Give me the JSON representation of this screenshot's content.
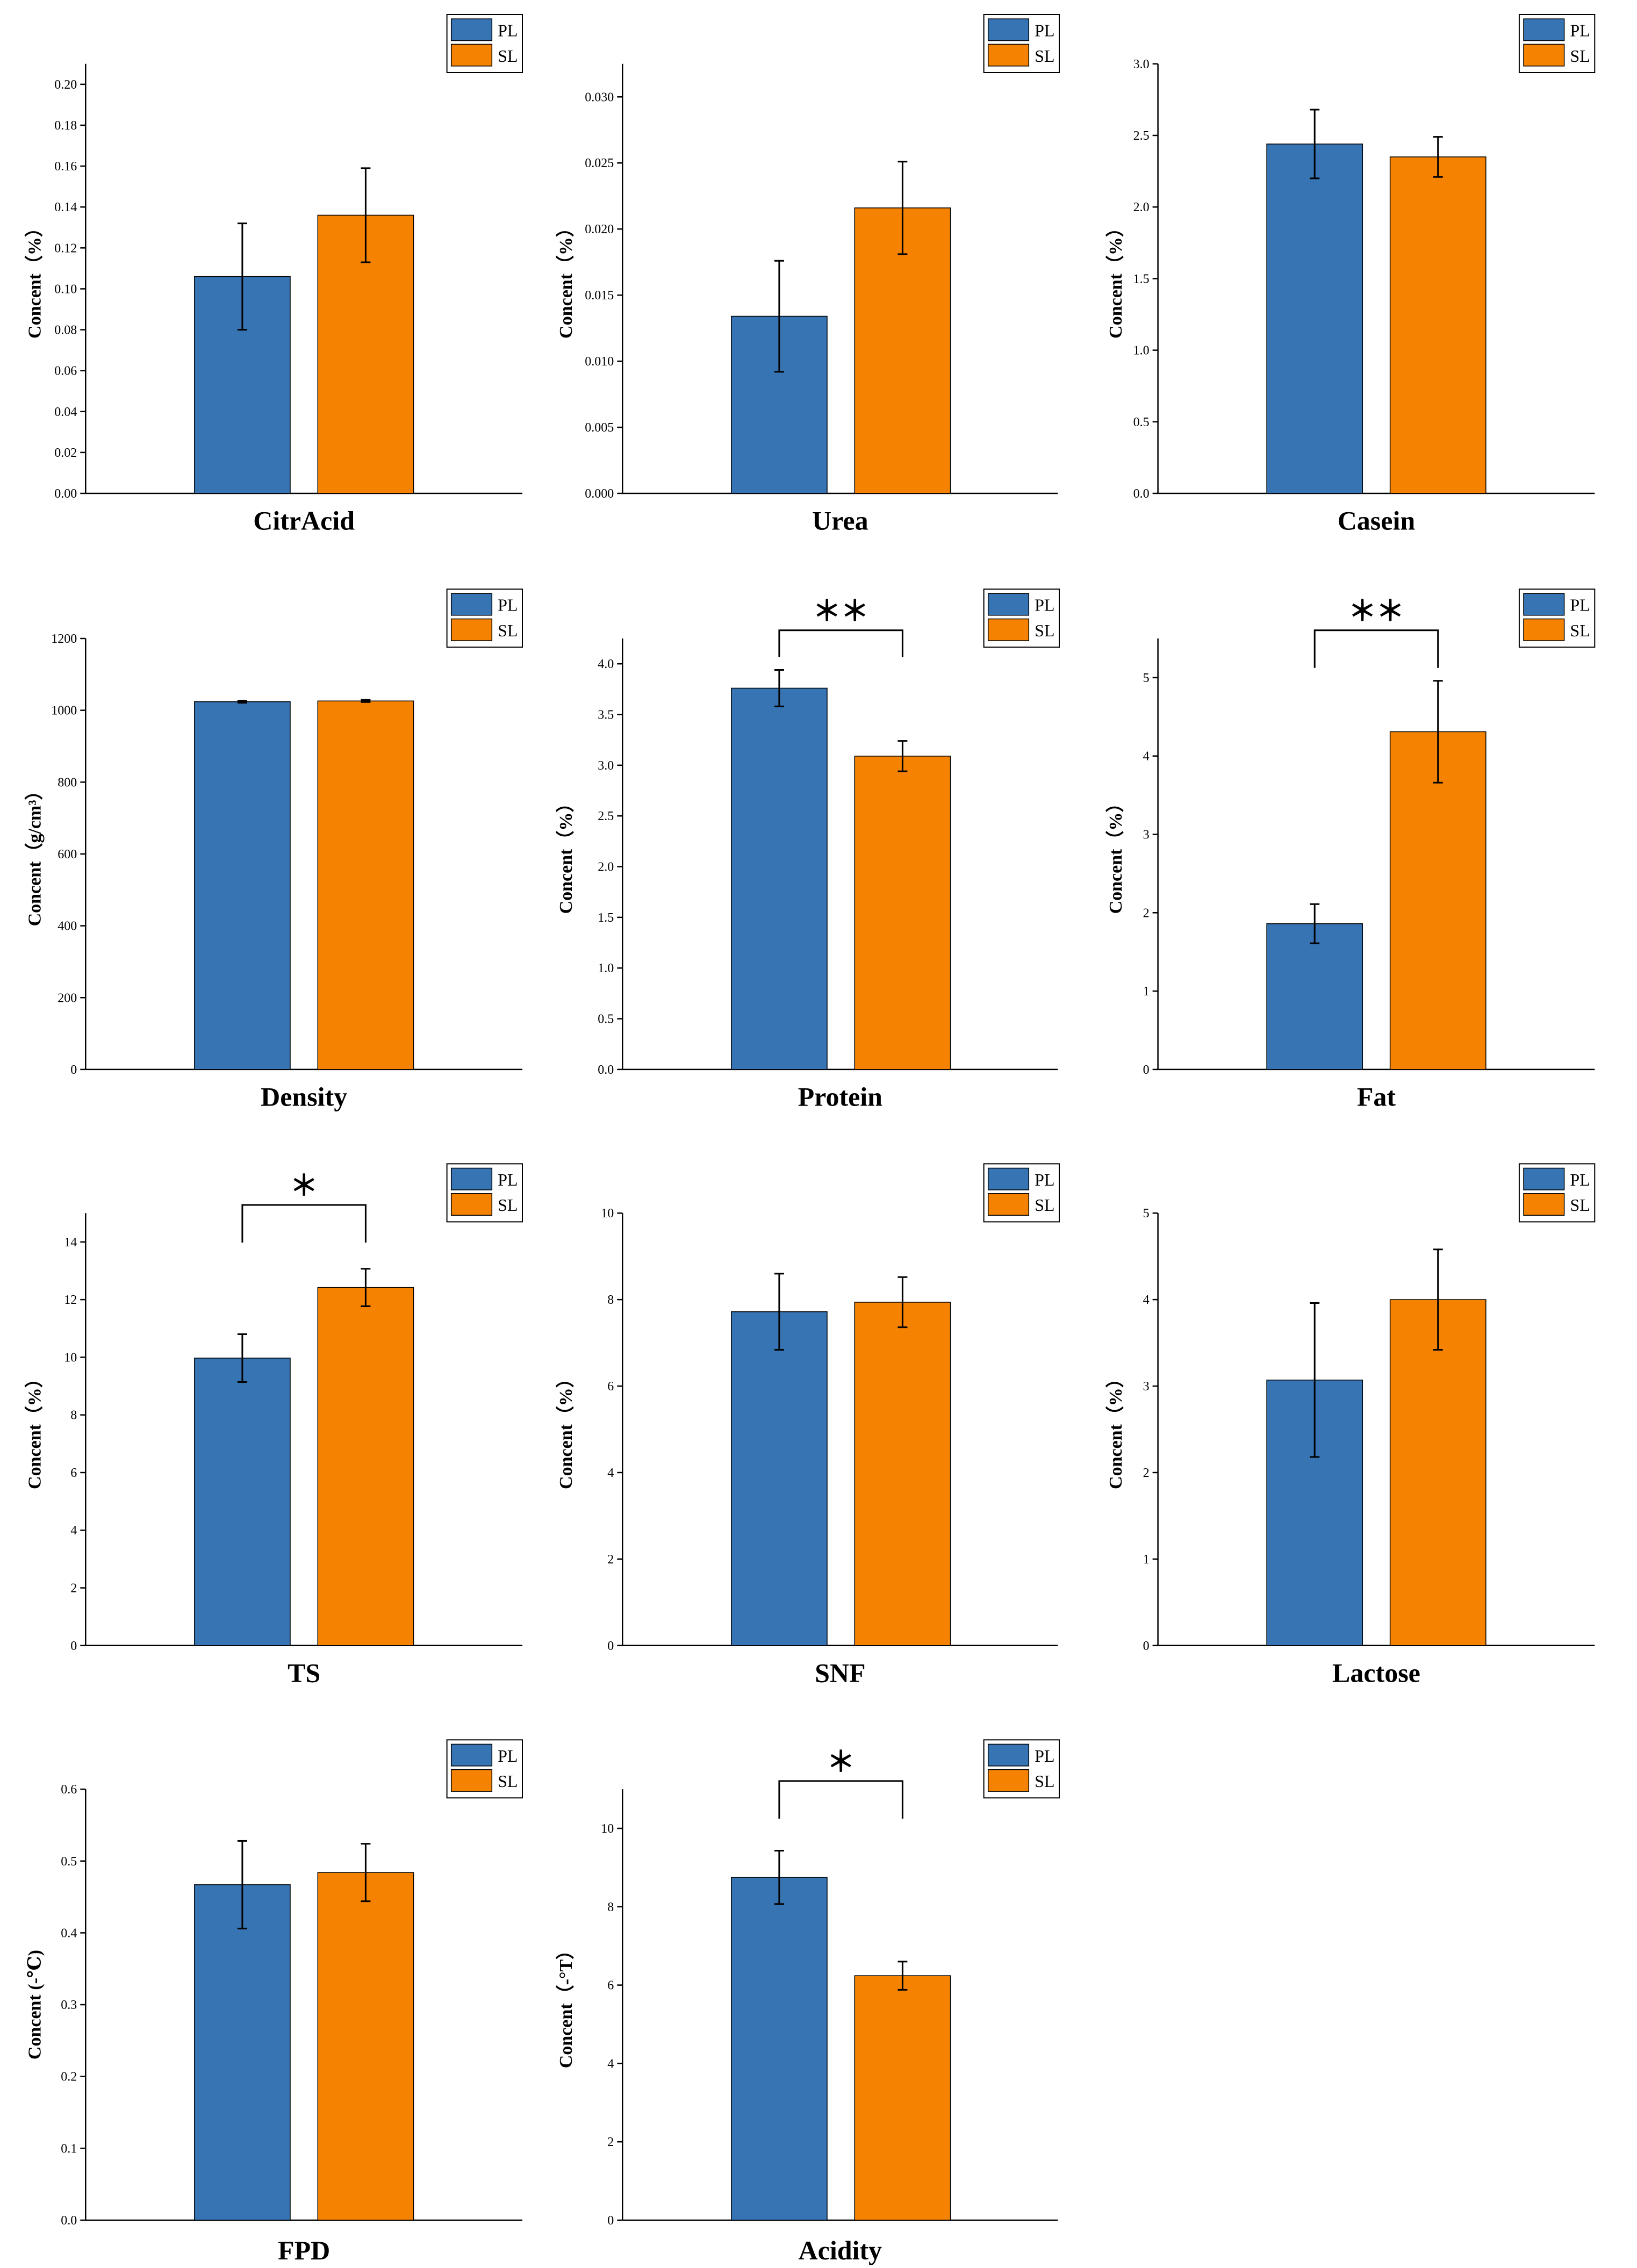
{
  "colors": {
    "PL": "#3674b4",
    "SL": "#f58201"
  },
  "legend": [
    "PL",
    "SL"
  ],
  "chart_data": [
    {
      "type": "bar",
      "category": "CitrAcid",
      "ylabel": "Concent（%）",
      "ylim": [
        0,
        0.21
      ],
      "yticks": [
        "0.00",
        "0.02",
        "0.04",
        "0.06",
        "0.08",
        "0.10",
        "0.12",
        "0.14",
        "0.16",
        "0.18",
        "0.20"
      ],
      "series": [
        {
          "name": "PL",
          "value": 0.106,
          "error": 0.026
        },
        {
          "name": "SL",
          "value": 0.136,
          "error": 0.023
        }
      ],
      "significance": ""
    },
    {
      "type": "bar",
      "category": "Urea",
      "ylabel": "Concent（%）",
      "ylim": [
        0,
        0.0325
      ],
      "yticks": [
        "0.000",
        "0.005",
        "0.010",
        "0.015",
        "0.020",
        "0.025",
        "0.030"
      ],
      "series": [
        {
          "name": "PL",
          "value": 0.0134,
          "error": 0.0042
        },
        {
          "name": "SL",
          "value": 0.0216,
          "error": 0.0035
        }
      ],
      "significance": ""
    },
    {
      "type": "bar",
      "category": "Casein",
      "ylabel": "Concent（%）",
      "ylim": [
        0,
        3.0
      ],
      "yticks": [
        "0.0",
        "0.5",
        "1.0",
        "1.5",
        "2.0",
        "2.5",
        "3.0"
      ],
      "series": [
        {
          "name": "PL",
          "value": 2.44,
          "error": 0.24
        },
        {
          "name": "SL",
          "value": 2.35,
          "error": 0.14
        }
      ],
      "significance": ""
    },
    {
      "type": "bar",
      "category": "Density",
      "ylabel": "Concent（g/cm³）",
      "ylim": [
        0,
        1200
      ],
      "yticks": [
        "0",
        "200",
        "400",
        "600",
        "800",
        "1000",
        "1200"
      ],
      "series": [
        {
          "name": "PL",
          "value": 1024,
          "error": 3
        },
        {
          "name": "SL",
          "value": 1026,
          "error": 3
        }
      ],
      "significance": ""
    },
    {
      "type": "bar",
      "category": "Protein",
      "ylabel": "Concent（%）",
      "ylim": [
        0,
        4.25
      ],
      "yticks": [
        "0.0",
        "0.5",
        "1.0",
        "1.5",
        "2.0",
        "2.5",
        "3.0",
        "3.5",
        "4.0"
      ],
      "series": [
        {
          "name": "PL",
          "value": 3.76,
          "error": 0.18
        },
        {
          "name": "SL",
          "value": 3.09,
          "error": 0.15
        }
      ],
      "significance": "＊＊"
    },
    {
      "type": "bar",
      "category": "Fat",
      "ylabel": "Concent（%）",
      "ylim": [
        0,
        5.5
      ],
      "yticks": [
        "0",
        "1",
        "2",
        "3",
        "4",
        "5"
      ],
      "series": [
        {
          "name": "PL",
          "value": 1.86,
          "error": 0.25
        },
        {
          "name": "SL",
          "value": 4.31,
          "error": 0.65
        }
      ],
      "significance": "＊＊"
    },
    {
      "type": "bar",
      "category": "TS",
      "ylabel": "Concent（%）",
      "ylim": [
        0,
        15
      ],
      "yticks": [
        "0",
        "2",
        "4",
        "6",
        "8",
        "10",
        "12",
        "14"
      ],
      "series": [
        {
          "name": "PL",
          "value": 9.97,
          "error": 0.83
        },
        {
          "name": "SL",
          "value": 12.42,
          "error": 0.65
        }
      ],
      "significance": "＊"
    },
    {
      "type": "bar",
      "category": "SNF",
      "ylabel": "Concent（%）",
      "ylim": [
        0,
        10
      ],
      "yticks": [
        "0",
        "2",
        "4",
        "6",
        "8",
        "10"
      ],
      "series": [
        {
          "name": "PL",
          "value": 7.72,
          "error": 0.88
        },
        {
          "name": "SL",
          "value": 7.94,
          "error": 0.58
        }
      ],
      "significance": ""
    },
    {
      "type": "bar",
      "category": "Lactose",
      "ylabel": "Concent（%）",
      "ylim": [
        0,
        5
      ],
      "yticks": [
        "0",
        "1",
        "2",
        "3",
        "4",
        "5"
      ],
      "series": [
        {
          "name": "PL",
          "value": 3.07,
          "error": 0.89
        },
        {
          "name": "SL",
          "value": 4.0,
          "error": 0.58
        }
      ],
      "significance": ""
    },
    {
      "type": "bar",
      "category": "FPD",
      "ylabel": "Concent (-℃)",
      "ylim": [
        0,
        0.6
      ],
      "yticks": [
        "0.0",
        "0.1",
        "0.2",
        "0.3",
        "0.4",
        "0.5",
        "0.6"
      ],
      "series": [
        {
          "name": "PL",
          "value": 0.467,
          "error": 0.061
        },
        {
          "name": "SL",
          "value": 0.484,
          "error": 0.04
        }
      ],
      "significance": ""
    },
    {
      "type": "bar",
      "category": "Acidity",
      "ylabel": "Concent（-°T）",
      "ylim": [
        0,
        11
      ],
      "yticks": [
        "0",
        "2",
        "4",
        "6",
        "8",
        "10"
      ],
      "series": [
        {
          "name": "PL",
          "value": 8.75,
          "error": 0.68
        },
        {
          "name": "SL",
          "value": 6.24,
          "error": 0.36
        }
      ],
      "significance": "＊"
    }
  ]
}
